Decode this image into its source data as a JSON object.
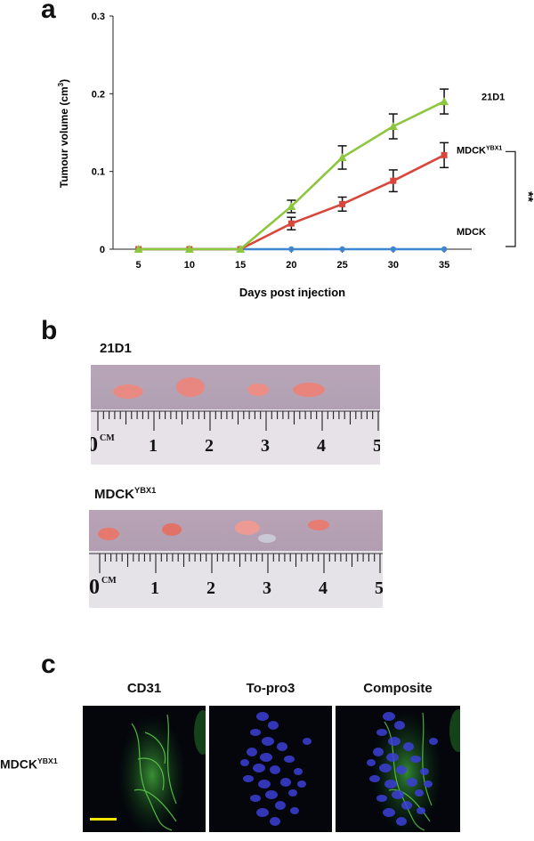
{
  "panel_a": {
    "letter": "a",
    "chart_data": {
      "type": "line",
      "xlabel": "Days post injection",
      "ylabel": "Tumour volume (cm³)",
      "ylabel_main": "Tumour volume (cm",
      "ylabel_sup": "3",
      "ylabel_end": ")",
      "x": [
        5,
        10,
        15,
        20,
        25,
        30,
        35
      ],
      "x_ticks": [
        "5",
        "10",
        "15",
        "20",
        "25",
        "30",
        "35"
      ],
      "ylim": [
        0,
        0.3
      ],
      "y_ticks": [
        "0",
        "0.1",
        "0.2",
        "0.3"
      ],
      "y_tick_values": [
        0,
        0.1,
        0.2,
        0.3
      ],
      "series": [
        {
          "name": "21D1",
          "color": "#8dc63f",
          "marker": "triangle",
          "values": [
            0,
            0,
            0,
            0.055,
            0.118,
            0.158,
            0.19
          ],
          "errors": [
            0,
            0,
            0,
            0.008,
            0.015,
            0.016,
            0.016
          ]
        },
        {
          "name": "MDCKYBX1",
          "label_main": "MDCK",
          "label_sup": "YBX1",
          "color": "#d9473c",
          "marker": "square",
          "values": [
            0,
            0,
            0,
            0.033,
            0.058,
            0.088,
            0.121
          ],
          "errors": [
            0,
            0,
            0,
            0.008,
            0.009,
            0.014,
            0.016
          ]
        },
        {
          "name": "MDCK",
          "color": "#3f86cf",
          "marker": "circle",
          "values": [
            0,
            0,
            0,
            0,
            0,
            0,
            0
          ],
          "errors": [
            0,
            0,
            0,
            0,
            0,
            0,
            0
          ]
        }
      ],
      "significance": "**"
    }
  },
  "panel_b": {
    "letter": "b",
    "photos": [
      {
        "label_main": "21D1",
        "label_sup": "",
        "tumour_count": 4,
        "ruler_marks": [
          "0",
          "CM",
          "1",
          "2",
          "3",
          "4",
          "5"
        ]
      },
      {
        "label_main": "MDCK",
        "label_sup": "YBX1",
        "tumour_count": 4,
        "ruler_marks": [
          "0",
          "CM",
          "1",
          "2",
          "3",
          "4",
          "5"
        ]
      }
    ]
  },
  "panel_c": {
    "letter": "c",
    "row_label_main": "MDCK",
    "row_label_sup": "YBX1",
    "channels": [
      "CD31",
      "To-pro3",
      "Composite"
    ]
  }
}
